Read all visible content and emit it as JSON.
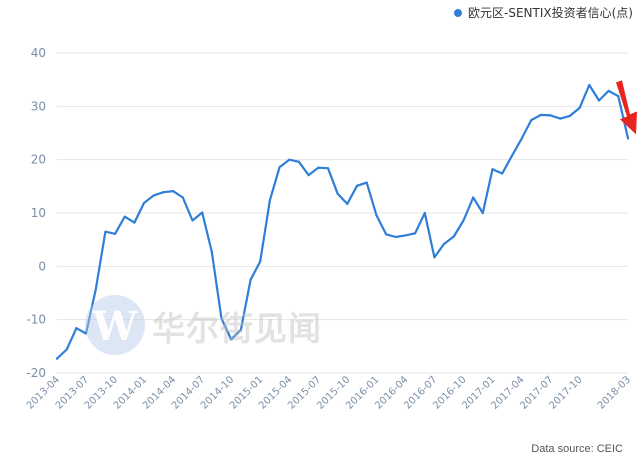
{
  "legend": {
    "label": "欧元区-SENTIX投资者信心(点)"
  },
  "source": "Data source: CEIC",
  "watermark": {
    "logo_letter": "W",
    "text": "华尔街见闻"
  },
  "colors": {
    "line": "#2f7ed8",
    "arrow": "#e8241e",
    "grid": "#e6e6e6",
    "tick": "#7b8fa8"
  },
  "chart_data": {
    "type": "line",
    "title": "",
    "xlabel": "",
    "ylabel": "",
    "ylim": [
      -20,
      40
    ],
    "yticks": [
      40,
      30,
      20,
      10,
      0,
      -10,
      -20
    ],
    "grid": true,
    "legend_position": "top-right",
    "xtick_labels": [
      "2013-04",
      "2013-07",
      "2013-10",
      "2014-01",
      "2014-04",
      "2014-07",
      "2014-10",
      "2015-01",
      "2015-04",
      "2015-07",
      "2015-10",
      "2016-01",
      "2016-04",
      "2016-07",
      "2016-10",
      "2017-01",
      "2017-04",
      "2017-07",
      "2017-10",
      "2018-03"
    ],
    "x": [
      "2013-04",
      "2013-05",
      "2013-06",
      "2013-07",
      "2013-08",
      "2013-09",
      "2013-10",
      "2013-11",
      "2013-12",
      "2014-01",
      "2014-02",
      "2014-03",
      "2014-04",
      "2014-05",
      "2014-06",
      "2014-07",
      "2014-08",
      "2014-09",
      "2014-10",
      "2014-11",
      "2014-12",
      "2015-01",
      "2015-02",
      "2015-03",
      "2015-04",
      "2015-05",
      "2015-06",
      "2015-07",
      "2015-08",
      "2015-09",
      "2015-10",
      "2015-11",
      "2015-12",
      "2016-01",
      "2016-02",
      "2016-03",
      "2016-04",
      "2016-05",
      "2016-06",
      "2016-07",
      "2016-08",
      "2016-09",
      "2016-10",
      "2016-11",
      "2016-12",
      "2017-01",
      "2017-02",
      "2017-03",
      "2017-04",
      "2017-05",
      "2017-06",
      "2017-07",
      "2017-08",
      "2017-09",
      "2017-10",
      "2017-11",
      "2017-12",
      "2018-01",
      "2018-02",
      "2018-03"
    ],
    "series": [
      {
        "name": "欧元区-SENTIX投资者信心(点)",
        "values": [
          -17.3,
          -15.6,
          -11.6,
          -12.6,
          -4.4,
          6.5,
          6.1,
          9.3,
          8.2,
          11.9,
          13.3,
          13.9,
          14.1,
          12.9,
          8.6,
          10.1,
          2.7,
          -9.8,
          -13.7,
          -11.9,
          -2.5,
          0.9,
          12.4,
          18.6,
          20.0,
          19.6,
          17.1,
          18.5,
          18.4,
          13.6,
          11.7,
          15.1,
          15.7,
          9.6,
          6.0,
          5.5,
          5.8,
          6.2,
          10.0,
          1.7,
          4.2,
          5.6,
          8.6,
          12.9,
          10.0,
          18.2,
          17.4,
          20.7,
          23.9,
          27.4,
          28.4,
          28.3,
          27.7,
          28.2,
          29.7,
          34.0,
          31.1,
          32.9,
          31.9,
          24.0
        ]
      }
    ],
    "annotations": [
      {
        "type": "arrow",
        "at": "2018-03",
        "direction": "down"
      }
    ]
  }
}
